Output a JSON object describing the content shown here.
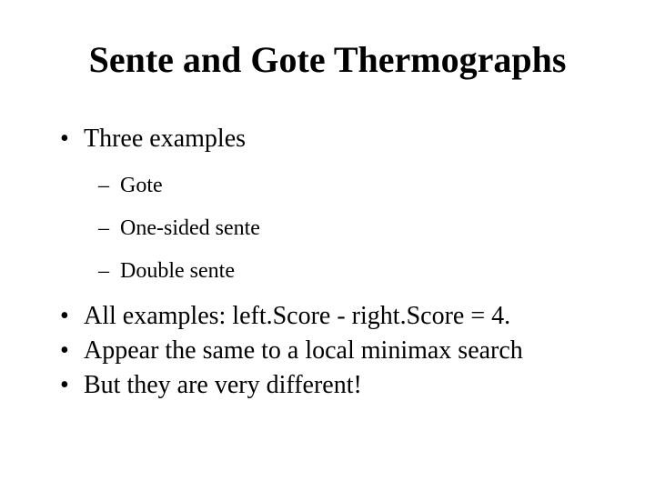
{
  "title": "Sente and Gote Thermographs",
  "bullets": {
    "b1": "Three examples",
    "sub": {
      "s1": "Gote",
      "s2": "One-sided sente",
      "s3": "Double sente"
    },
    "b2": "All examples: left.Score - right.Score = 4.",
    "b3": "Appear the same to a local minimax search",
    "b4": "But they are very different!"
  },
  "markers": {
    "dot": "•",
    "dash": "–"
  }
}
